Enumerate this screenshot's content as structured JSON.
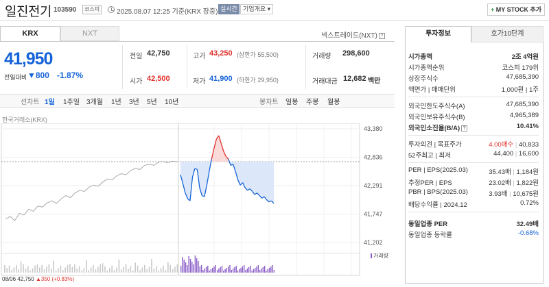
{
  "header": {
    "title": "일진전기",
    "code": "103590",
    "market": "코스피",
    "datetime": "2025.08.07 12:25 기준(KRX 장중)",
    "realtime": "실시간",
    "company": "기업개요 ▾",
    "mystock": "MY STOCK 추가"
  },
  "tabs": {
    "krx": "KRX",
    "nxt": "NXT",
    "nxt_link": "넥스트레이드(NXT)"
  },
  "price": {
    "current": "41,950",
    "change_label": "전일대비",
    "change": "▼800",
    "change_pct": "-1.87%"
  },
  "info": {
    "prev_close_label": "전일",
    "prev_close": "42,750",
    "high_label": "고가",
    "high": "43,250",
    "high_sub": "(상한가 55,500)",
    "volume_label": "거래량",
    "volume": "298,600",
    "open_label": "시가",
    "open": "42,500",
    "low_label": "저가",
    "low": "41,900",
    "low_sub": "(하한가 29,950)",
    "amount_label": "거래대금",
    "amount": "12,682",
    "amount_unit": "백만"
  },
  "periods": [
    "선차트",
    "1일",
    "1주일",
    "3개월",
    "1년",
    "3년",
    "5년",
    "10년"
  ],
  "active_period": "1일",
  "candle_label": "봉차트",
  "candle_periods": [
    "일봉",
    "주봉",
    "월봉"
  ],
  "chart_source": "한국거래소(KRX)",
  "chart_data": {
    "type": "line",
    "y_ticks": [
      "43,380",
      "42,836",
      "42,291",
      "41,747",
      "41,202"
    ],
    "ylim": [
      41202,
      43380
    ],
    "x_ticks": [
      "08/06",
      "08/07",
      "10:00",
      "11:00",
      "12:00",
      "13:00",
      "14:00",
      "15:00"
    ],
    "prev_close": 42750,
    "series": [
      {
        "values_prev_day": [
          41650,
          41700,
          41620,
          41760,
          41730,
          41840,
          41800,
          41900,
          41880,
          41960,
          42000,
          41950,
          42040,
          42100,
          42060,
          42150,
          42200,
          42180,
          42260,
          42300,
          42280,
          42360,
          42420,
          42400,
          42480,
          42520,
          42500,
          42580,
          42620,
          42600,
          42680,
          42700,
          42680,
          42740,
          42750,
          42730,
          42760,
          42750
        ]
      },
      {
        "values_today": [
          42500,
          42330,
          42150,
          42040,
          42000,
          42450,
          42620,
          42600,
          42250,
          42100,
          42080,
          42300,
          42560,
          42800,
          43000,
          43180,
          43250,
          43100,
          42950,
          42850,
          42800,
          42680,
          42700,
          42560,
          42400,
          42300,
          42350,
          42250,
          42200,
          42230,
          42180,
          42120,
          42150,
          42100,
          42050,
          42080,
          42020,
          41980,
          42000,
          41950
        ]
      }
    ],
    "volume_legend": "거래량",
    "bottom_info": "08/06 42,750 ▲350 (+0.83%)"
  },
  "invest": {
    "tab1": "투자정보",
    "tab2": "호가10단계",
    "rows1": [
      {
        "k": "시가총액",
        "v": "2조 4억원",
        "bold": true
      },
      {
        "k": "시가총액순위",
        "v": "코스피 179위"
      },
      {
        "k": "상장주식수",
        "v": "47,685,390"
      },
      {
        "k": "액면가 | 매매단위",
        "v": "1,000원 | 1주"
      }
    ],
    "rows2": [
      {
        "k": "외국인한도주식수(A)",
        "v": "47,685,390"
      },
      {
        "k": "외국인보유주식수(B)",
        "v": "4,965,389"
      },
      {
        "k": "외국인소진율(B/A)",
        "v": "10.41%",
        "bold": true,
        "q": true
      }
    ],
    "rows3": [
      {
        "k": "투자의견 | 목표주가",
        "v1": "4.00매수",
        "v2": "40,833"
      },
      {
        "k": "52주최고 | 최저",
        "v1": "44,400",
        "v2": "16,600"
      }
    ],
    "rows4": [
      {
        "k": "PER | EPS(2025.03)",
        "v1": "35.43배",
        "v2": "1,184원"
      },
      {
        "k": "추정PER | EPS",
        "v1": "23.02배",
        "v2": "1,822원"
      },
      {
        "k": "PBR | BPS(2025.03)",
        "v1": "3.93배",
        "v2": "10,675원"
      },
      {
        "k": "배당수익률 | 2024.12",
        "v1": "",
        "v2": "0.72%"
      }
    ],
    "rows5": [
      {
        "k": "동일업종 PER",
        "v": "32.49배",
        "bold": true
      },
      {
        "k": "동일업종 등락률",
        "v": "-0.68%",
        "blue": true
      }
    ]
  },
  "colors": {
    "up": "#e0312b",
    "down": "#1563d8",
    "prev_line": "#aaaaaa",
    "volume": "#8a5cc8"
  }
}
